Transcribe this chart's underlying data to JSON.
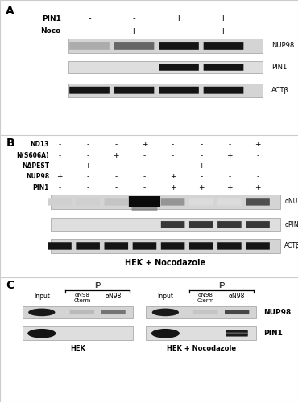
{
  "bg_color": "#ffffff",
  "gel_bg_light": "#d8d8d8",
  "gel_bg_lighter": "#e4e4e4",
  "band_dark": "#111111",
  "band_med": "#444444",
  "band_faint": "#aaaaaa",
  "border_color": "#cccccc",
  "panelA": {
    "pin1_labels": [
      "-",
      "-",
      "+",
      "+"
    ],
    "noco_labels": [
      "-",
      "+",
      "-",
      "+"
    ],
    "nup98_intensity": [
      0.35,
      0.65,
      1.0,
      1.0
    ],
    "pin1_intensity": [
      0,
      0,
      1.0,
      1.0
    ],
    "act_intensity": [
      1.0,
      1.0,
      1.0,
      1.0
    ]
  },
  "panelB": {
    "row_labels": [
      "ND13",
      "N(S606A)",
      "NΔPEST",
      "NUP98",
      "PIN1"
    ],
    "table": {
      "ND13": [
        "-",
        "-",
        "-",
        "+",
        "-",
        "-",
        "-",
        "+"
      ],
      "N(S606A)": [
        "-",
        "-",
        "+",
        "-",
        "-",
        "-",
        "+",
        "-"
      ],
      "NDPEST": [
        "-",
        "+",
        "-",
        "-",
        "-",
        "+",
        "-",
        "-"
      ],
      "NUP98": [
        "+",
        "-",
        "-",
        "-",
        "+",
        "-",
        "-",
        "-"
      ],
      "PIN1": [
        "-",
        "-",
        "-",
        "-",
        "+",
        "+",
        "+",
        "+"
      ]
    },
    "nup98_intensity": [
      0.2,
      0.2,
      0.25,
      1.0,
      0.45,
      0.15,
      0.15,
      0.75
    ],
    "pin1_intensity": [
      0,
      0,
      0,
      0,
      0.85,
      0.85,
      0.85,
      0.85
    ],
    "act_intensity": [
      1.0,
      1.0,
      1.0,
      1.0,
      1.0,
      1.0,
      1.0,
      1.0
    ]
  },
  "panelC": {
    "col_labels": [
      "Input",
      "αN98\nCterm",
      "αN98"
    ],
    "hek_nup98": [
      1.0,
      0.3,
      0.6
    ],
    "hek_pin1": [
      1.0,
      0,
      0
    ],
    "noco_nup98": [
      1.0,
      0.25,
      0.8
    ],
    "noco_pin1": [
      1.0,
      0,
      0.7
    ]
  }
}
